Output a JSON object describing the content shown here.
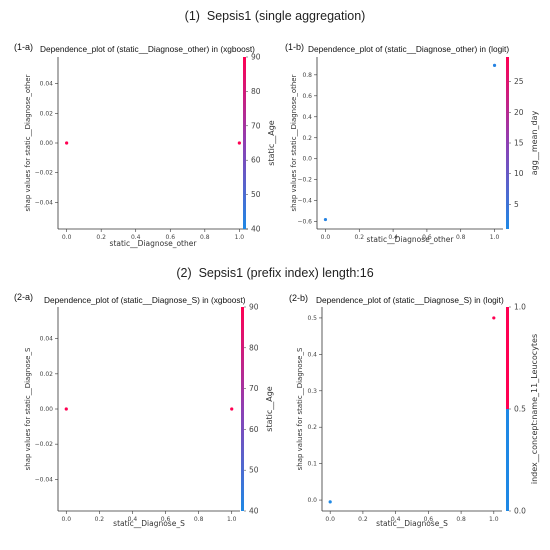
{
  "sections": [
    {
      "number": "(1)",
      "title": "Sepsis1 (single aggregation)"
    },
    {
      "number": "(2)",
      "title": "Sepsis1 (prefix index) length:16"
    }
  ],
  "colors": {
    "low": "#1e88e5",
    "mid": "#8e3fb4",
    "high": "#ff0052",
    "axis": "#333333"
  },
  "chart_data": [
    {
      "panel": "(1-a)",
      "type": "scatter",
      "title": "Dependence_plot of (static__Diagnose_other) in (xgboost)",
      "xlabel": "static__Diagnose_other",
      "ylabel": "shap values for static__Diagnose_other",
      "x_ticks": [
        0.0,
        0.2,
        0.4,
        0.6,
        0.8,
        1.0
      ],
      "y_ticks": [
        -0.04,
        -0.02,
        0.0,
        0.02,
        0.04
      ],
      "xlim": [
        -0.05,
        1.05
      ],
      "ylim": [
        -0.058,
        0.058
      ],
      "points": [
        {
          "x": 0.0,
          "y": 0.0,
          "c": 90
        },
        {
          "x": 1.0,
          "y": 0.0,
          "c": 90
        }
      ],
      "colorbar": {
        "label": "static__Age",
        "min": 40,
        "max": 90,
        "ticks": [
          40,
          50,
          60,
          70,
          80,
          90
        ]
      }
    },
    {
      "panel": "(1-b)",
      "type": "scatter",
      "title": "Dependence_plot of (static__Diagnose_other) in (logit)",
      "xlabel": "static__Diagnose_other",
      "ylabel": "shap values for static__Diagnose_other",
      "x_ticks": [
        0.0,
        0.2,
        0.4,
        0.6,
        0.8,
        1.0
      ],
      "y_ticks": [
        -0.6,
        -0.4,
        -0.2,
        0.0,
        0.2,
        0.4,
        0.6,
        0.8
      ],
      "xlim": [
        -0.05,
        1.05
      ],
      "ylim": [
        -0.67,
        0.97
      ],
      "points": [
        {
          "x": 0.0,
          "y": -0.58,
          "c": 2
        },
        {
          "x": 1.0,
          "y": 0.89,
          "c": 2
        }
      ],
      "colorbar": {
        "label": "agg__mean_day",
        "min": 1,
        "max": 29,
        "ticks": [
          5,
          10,
          15,
          20,
          25
        ]
      }
    },
    {
      "panel": "(2-a)",
      "type": "scatter",
      "title": "Dependence_plot of (static__Diagnose_S) in (xgboost)",
      "xlabel": "static__Diagnose_S",
      "ylabel": "shap values for static__Diagnose_S",
      "x_ticks": [
        0.0,
        0.2,
        0.4,
        0.6,
        0.8,
        1.0
      ],
      "y_ticks": [
        -0.04,
        -0.02,
        0.0,
        0.02,
        0.04
      ],
      "xlim": [
        -0.05,
        1.05
      ],
      "ylim": [
        -0.058,
        0.058
      ],
      "points": [
        {
          "x": 0.0,
          "y": 0.0,
          "c": 90
        },
        {
          "x": 1.0,
          "y": 0.0,
          "c": 90
        }
      ],
      "colorbar": {
        "label": "static__Age",
        "min": 40,
        "max": 90,
        "ticks": [
          40,
          50,
          60,
          70,
          80,
          90
        ]
      }
    },
    {
      "panel": "(2-b)",
      "type": "scatter",
      "title": "Dependence_plot of (static__Diagnose_S) in (logit)",
      "xlabel": "static__Diagnose_S",
      "ylabel": "shap values for static__Diagnose_S",
      "x_ticks": [
        0.0,
        0.2,
        0.4,
        0.6,
        0.8,
        1.0
      ],
      "y_ticks": [
        0.0,
        0.1,
        0.2,
        0.3,
        0.4,
        0.5
      ],
      "xlim": [
        -0.05,
        1.05
      ],
      "ylim": [
        -0.03,
        0.53
      ],
      "points": [
        {
          "x": 0.0,
          "y": -0.005,
          "c": 0.0
        },
        {
          "x": 1.0,
          "y": 0.5,
          "c": 1.0
        }
      ],
      "colorbar": {
        "label": "index__concept:name_11_Leucocytes",
        "min": 0.0,
        "max": 1.0,
        "ticks": [
          0.0,
          0.5,
          1.0
        ],
        "tick_decimals": 1,
        "binary": true
      }
    }
  ]
}
